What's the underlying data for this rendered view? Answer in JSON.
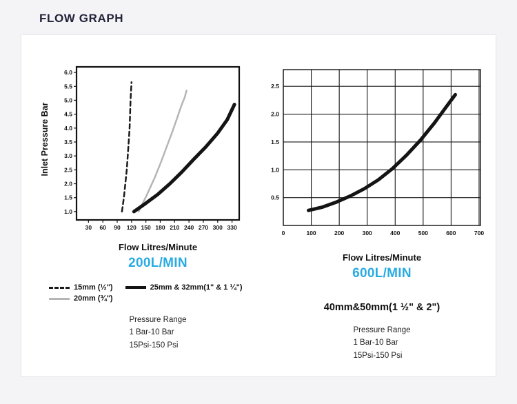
{
  "page": {
    "title": "FLOW GRAPH"
  },
  "chart_data": [
    {
      "type": "line",
      "title": "200L/MIN",
      "title_color": "#29abe2",
      "xlabel": "Flow Litres/Minute",
      "ylabel": "Inlet Pressure Bar",
      "xlim": [
        5,
        345
      ],
      "ylim": [
        0.7,
        6.2
      ],
      "x_ticks": [
        30,
        60,
        90,
        120,
        150,
        180,
        210,
        240,
        270,
        300,
        330
      ],
      "y_ticks": [
        1.0,
        1.5,
        2.0,
        2.5,
        3.0,
        3.5,
        4.0,
        4.5,
        5.0,
        5.5,
        6.0
      ],
      "grid": false,
      "legend_position": "below",
      "series": [
        {
          "name": "15mm (½\")",
          "style": "dashed",
          "color": "#1a1a1a",
          "width": 2.5,
          "dash": "6.5 4.5",
          "points": [
            [
              100,
              1.0
            ],
            [
              104,
              1.5
            ],
            [
              107,
              2.0
            ],
            [
              110,
              2.5
            ],
            [
              112,
              3.0
            ],
            [
              114,
              3.5
            ],
            [
              116,
              4.0
            ],
            [
              117,
              4.5
            ],
            [
              118,
              5.0
            ],
            [
              119,
              5.35
            ],
            [
              120,
              5.65
            ]
          ]
        },
        {
          "name": "20mm (¾\")",
          "style": "solid",
          "color": "#b5b5b5",
          "width": 2.5,
          "dash": null,
          "points": [
            [
              135,
              1.0
            ],
            [
              152,
              1.6
            ],
            [
              168,
              2.2
            ],
            [
              182,
              2.8
            ],
            [
              195,
              3.4
            ],
            [
              206,
              3.9
            ],
            [
              216,
              4.4
            ],
            [
              224,
              4.8
            ],
            [
              231,
              5.1
            ],
            [
              235,
              5.35
            ]
          ]
        },
        {
          "name": "25mm & 32mm(1\" & 1 ¼\")",
          "style": "solid",
          "color": "#141414",
          "width": 5,
          "dash": null,
          "points": [
            [
              125,
              1.0
            ],
            [
              150,
              1.3
            ],
            [
              175,
              1.62
            ],
            [
              200,
              2.0
            ],
            [
              225,
              2.42
            ],
            [
              250,
              2.88
            ],
            [
              275,
              3.32
            ],
            [
              300,
              3.82
            ],
            [
              320,
              4.3
            ],
            [
              335,
              4.85
            ]
          ]
        }
      ]
    },
    {
      "type": "line",
      "title": "600L/MIN",
      "title_color": "#29abe2",
      "xlabel": "Flow Litres/Minute",
      "ylabel": "",
      "xlim": [
        0,
        705
      ],
      "ylim": [
        0,
        2.8
      ],
      "x_ticks": [
        0,
        100,
        200,
        300,
        400,
        500,
        600,
        700
      ],
      "y_ticks": [
        0.5,
        1.0,
        1.5,
        2.0,
        2.5
      ],
      "grid": true,
      "legend_position": "none",
      "series": [
        {
          "name": "40mm&50mm",
          "style": "solid",
          "color": "#141414",
          "width": 5,
          "dash": null,
          "points": [
            [
              90,
              0.27
            ],
            [
              140,
              0.33
            ],
            [
              190,
              0.42
            ],
            [
              240,
              0.53
            ],
            [
              290,
              0.66
            ],
            [
              340,
              0.82
            ],
            [
              390,
              1.02
            ],
            [
              440,
              1.26
            ],
            [
              490,
              1.53
            ],
            [
              540,
              1.84
            ],
            [
              590,
              2.18
            ],
            [
              615,
              2.35
            ]
          ]
        }
      ]
    }
  ],
  "left_panel": {
    "pressure_range": [
      "Pressure Range",
      "1 Bar-10 Bar",
      "15Psi-150 Psi"
    ]
  },
  "right_panel": {
    "size_label": "40mm&50mm(1 ½\" & 2\")",
    "pressure_range": [
      "Pressure Range",
      "1 Bar-10 Bar",
      "15Psi-150 Psi"
    ]
  }
}
